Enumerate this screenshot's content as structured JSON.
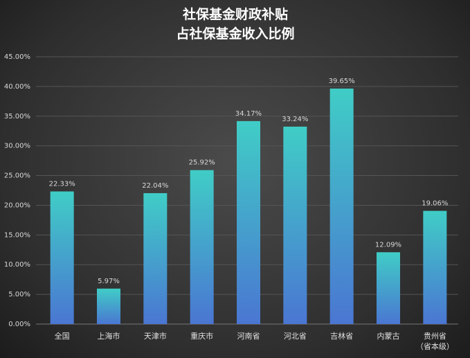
{
  "chart_data": {
    "type": "bar",
    "title": [
      "社保基金财政补贴",
      "占社保基金收入比例"
    ],
    "categories": [
      "全国",
      "上海市",
      "天津市",
      "重庆市",
      "河南省",
      "河北省",
      "吉林省",
      "内蒙古",
      "贵州省\n（省本级）"
    ],
    "values": [
      22.33,
      5.97,
      22.04,
      25.92,
      34.17,
      33.24,
      39.65,
      12.09,
      19.06
    ],
    "value_labels": [
      "22.33%",
      "5.97%",
      "22.04%",
      "25.92%",
      "34.17%",
      "33.24%",
      "39.65%",
      "12.09%",
      "19.06%"
    ],
    "color": [
      "#40cdc6",
      "#4a76d2"
    ],
    "ylim": [
      0,
      45
    ],
    "yticks": [
      {
        "value": 0,
        "label": "0.00%"
      },
      {
        "value": 5,
        "label": "5.00%"
      },
      {
        "value": 10,
        "label": "10.00%"
      },
      {
        "value": 15,
        "label": "15.00%"
      },
      {
        "value": 20,
        "label": "20.00%"
      },
      {
        "value": 25,
        "label": "25.00%"
      },
      {
        "value": 30,
        "label": "30.00%"
      },
      {
        "value": 35,
        "label": "35.00%"
      },
      {
        "value": 40,
        "label": "40.00%"
      },
      {
        "value": 45,
        "label": "45.00%"
      }
    ],
    "grid": true
  }
}
